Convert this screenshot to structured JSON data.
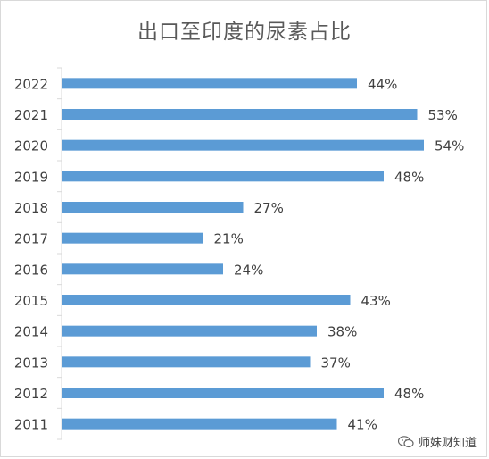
{
  "chart_data": {
    "type": "bar",
    "orientation": "horizontal",
    "title": "出口至印度的尿素占比",
    "categories": [
      "2022",
      "2021",
      "2020",
      "2019",
      "2018",
      "2017",
      "2016",
      "2015",
      "2014",
      "2013",
      "2012",
      "2011"
    ],
    "values": [
      44,
      53,
      54,
      48,
      27,
      21,
      24,
      43,
      38,
      37,
      48,
      41
    ],
    "value_labels": [
      "44%",
      "53%",
      "54%",
      "48%",
      "27%",
      "21%",
      "24%",
      "43%",
      "38%",
      "37%",
      "48%",
      "41%"
    ],
    "xlim": [
      0,
      60
    ],
    "grid": false,
    "legend": "none",
    "bar_color": "#5b9bd5"
  },
  "watermark": {
    "text": "师妹财知道",
    "icon": "wechat-icon"
  }
}
